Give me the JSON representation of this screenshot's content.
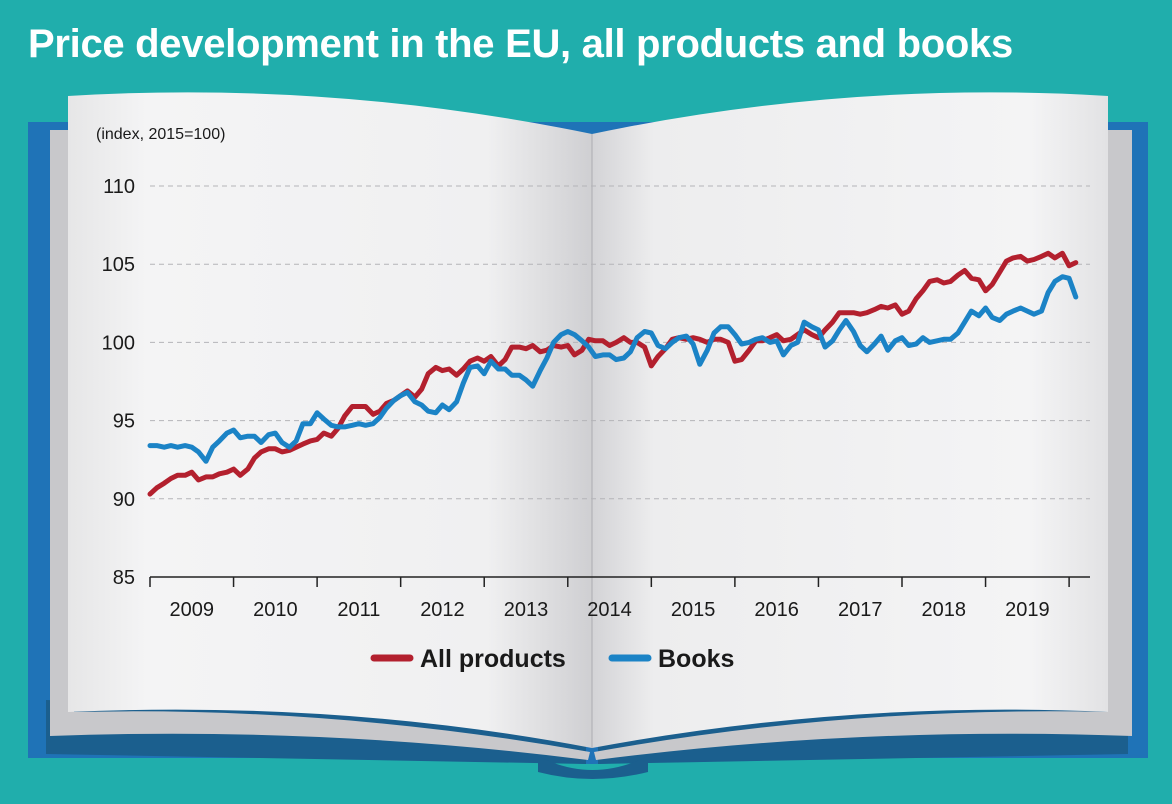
{
  "header": {
    "title": "Price development in the EU, all products and books"
  },
  "colors": {
    "background": "#20aeac",
    "book_cover": "#1f73b7",
    "page": "#efeff0",
    "all_products": "#b3202e",
    "books": "#1b83c6"
  },
  "chart_data": {
    "type": "line",
    "title": "Price development in the EU, all products and books",
    "subtitle": "(index, 2015=100)",
    "xlabel": "",
    "ylabel": "",
    "ylim": [
      85,
      110
    ],
    "yticks": [
      85,
      90,
      95,
      100,
      105,
      110
    ],
    "xlim": [
      2009.0,
      2020.25
    ],
    "year_labels": [
      "2009",
      "2010",
      "2011",
      "2012",
      "2013",
      "2014",
      "2015",
      "2016",
      "2017",
      "2018",
      "2019"
    ],
    "grid": "horizontal dashed",
    "legend_position": "bottom",
    "series": [
      {
        "name": "All products",
        "color": "#b3202e",
        "points": [
          [
            2009.0,
            90.3
          ],
          [
            2009.08,
            90.7
          ],
          [
            2009.17,
            91.0
          ],
          [
            2009.25,
            91.3
          ],
          [
            2009.33,
            91.5
          ],
          [
            2009.42,
            91.5
          ],
          [
            2009.5,
            91.7
          ],
          [
            2009.58,
            91.2
          ],
          [
            2009.67,
            91.4
          ],
          [
            2009.75,
            91.4
          ],
          [
            2009.83,
            91.6
          ],
          [
            2009.92,
            91.7
          ],
          [
            2010.0,
            91.9
          ],
          [
            2010.08,
            91.5
          ],
          [
            2010.17,
            91.9
          ],
          [
            2010.25,
            92.6
          ],
          [
            2010.33,
            93.0
          ],
          [
            2010.42,
            93.2
          ],
          [
            2010.5,
            93.2
          ],
          [
            2010.58,
            93.0
          ],
          [
            2010.67,
            93.1
          ],
          [
            2010.75,
            93.3
          ],
          [
            2010.83,
            93.5
          ],
          [
            2010.92,
            93.7
          ],
          [
            2011.0,
            93.8
          ],
          [
            2011.08,
            94.2
          ],
          [
            2011.17,
            94.0
          ],
          [
            2011.25,
            94.5
          ],
          [
            2011.33,
            95.3
          ],
          [
            2011.42,
            95.9
          ],
          [
            2011.5,
            95.9
          ],
          [
            2011.58,
            95.9
          ],
          [
            2011.67,
            95.4
          ],
          [
            2011.75,
            95.6
          ],
          [
            2011.83,
            96.1
          ],
          [
            2011.92,
            96.3
          ],
          [
            2012.0,
            96.6
          ],
          [
            2012.08,
            96.9
          ],
          [
            2012.17,
            96.5
          ],
          [
            2012.25,
            97.0
          ],
          [
            2012.33,
            98.0
          ],
          [
            2012.42,
            98.4
          ],
          [
            2012.5,
            98.2
          ],
          [
            2012.58,
            98.3
          ],
          [
            2012.67,
            97.9
          ],
          [
            2012.75,
            98.3
          ],
          [
            2012.83,
            98.8
          ],
          [
            2012.92,
            99.0
          ],
          [
            2013.0,
            98.8
          ],
          [
            2013.08,
            99.1
          ],
          [
            2013.17,
            98.5
          ],
          [
            2013.25,
            98.9
          ],
          [
            2013.33,
            99.7
          ],
          [
            2013.42,
            99.7
          ],
          [
            2013.5,
            99.6
          ],
          [
            2013.58,
            99.8
          ],
          [
            2013.67,
            99.4
          ],
          [
            2013.75,
            99.5
          ],
          [
            2013.83,
            99.8
          ],
          [
            2013.92,
            99.7
          ],
          [
            2014.0,
            99.8
          ],
          [
            2014.08,
            99.2
          ],
          [
            2014.17,
            99.5
          ],
          [
            2014.25,
            100.2
          ],
          [
            2014.33,
            100.1
          ],
          [
            2014.42,
            100.1
          ],
          [
            2014.5,
            99.8
          ],
          [
            2014.58,
            100.0
          ],
          [
            2014.67,
            100.3
          ],
          [
            2014.75,
            100.0
          ],
          [
            2014.83,
            100.0
          ],
          [
            2014.92,
            99.7
          ],
          [
            2015.0,
            98.5
          ],
          [
            2015.08,
            99.1
          ],
          [
            2015.17,
            99.6
          ],
          [
            2015.25,
            100.2
          ],
          [
            2015.33,
            100.3
          ],
          [
            2015.42,
            100.2
          ],
          [
            2015.5,
            100.3
          ],
          [
            2015.58,
            100.2
          ],
          [
            2015.67,
            100.0
          ],
          [
            2015.75,
            100.2
          ],
          [
            2015.83,
            100.2
          ],
          [
            2015.92,
            100.0
          ],
          [
            2016.0,
            98.8
          ],
          [
            2016.08,
            98.9
          ],
          [
            2016.17,
            99.5
          ],
          [
            2016.25,
            100.1
          ],
          [
            2016.33,
            100.1
          ],
          [
            2016.42,
            100.3
          ],
          [
            2016.5,
            100.5
          ],
          [
            2016.58,
            100.1
          ],
          [
            2016.67,
            100.2
          ],
          [
            2016.75,
            100.5
          ],
          [
            2016.83,
            100.8
          ],
          [
            2016.92,
            100.5
          ],
          [
            2017.0,
            100.3
          ],
          [
            2017.08,
            100.8
          ],
          [
            2017.17,
            101.3
          ],
          [
            2017.25,
            101.9
          ],
          [
            2017.33,
            101.9
          ],
          [
            2017.42,
            101.9
          ],
          [
            2017.5,
            101.8
          ],
          [
            2017.58,
            101.9
          ],
          [
            2017.67,
            102.1
          ],
          [
            2017.75,
            102.3
          ],
          [
            2017.83,
            102.2
          ],
          [
            2017.92,
            102.4
          ],
          [
            2018.0,
            101.8
          ],
          [
            2018.08,
            102.0
          ],
          [
            2018.17,
            102.8
          ],
          [
            2018.25,
            103.3
          ],
          [
            2018.33,
            103.9
          ],
          [
            2018.42,
            104.0
          ],
          [
            2018.5,
            103.8
          ],
          [
            2018.58,
            103.9
          ],
          [
            2018.67,
            104.3
          ],
          [
            2018.75,
            104.6
          ],
          [
            2018.83,
            104.1
          ],
          [
            2018.92,
            104.0
          ],
          [
            2019.0,
            103.3
          ],
          [
            2019.08,
            103.7
          ],
          [
            2019.17,
            104.5
          ],
          [
            2019.25,
            105.2
          ],
          [
            2019.33,
            105.4
          ],
          [
            2019.42,
            105.5
          ],
          [
            2019.5,
            105.2
          ],
          [
            2019.58,
            105.3
          ],
          [
            2019.67,
            105.5
          ],
          [
            2019.75,
            105.7
          ],
          [
            2019.83,
            105.4
          ],
          [
            2019.92,
            105.7
          ],
          [
            2020.0,
            104.9
          ],
          [
            2020.08,
            105.1
          ]
        ]
      },
      {
        "name": "Books",
        "color": "#1b83c6",
        "points": [
          [
            2009.0,
            93.4
          ],
          [
            2009.08,
            93.4
          ],
          [
            2009.17,
            93.3
          ],
          [
            2009.25,
            93.4
          ],
          [
            2009.33,
            93.3
          ],
          [
            2009.42,
            93.4
          ],
          [
            2009.5,
            93.3
          ],
          [
            2009.58,
            93.0
          ],
          [
            2009.67,
            92.4
          ],
          [
            2009.75,
            93.3
          ],
          [
            2009.83,
            93.7
          ],
          [
            2009.92,
            94.2
          ],
          [
            2010.0,
            94.4
          ],
          [
            2010.08,
            93.9
          ],
          [
            2010.17,
            94.0
          ],
          [
            2010.25,
            94.0
          ],
          [
            2010.33,
            93.6
          ],
          [
            2010.42,
            94.1
          ],
          [
            2010.5,
            94.2
          ],
          [
            2010.58,
            93.6
          ],
          [
            2010.67,
            93.3
          ],
          [
            2010.75,
            93.7
          ],
          [
            2010.83,
            94.8
          ],
          [
            2010.92,
            94.8
          ],
          [
            2011.0,
            95.5
          ],
          [
            2011.08,
            95.1
          ],
          [
            2011.17,
            94.7
          ],
          [
            2011.25,
            94.6
          ],
          [
            2011.33,
            94.6
          ],
          [
            2011.42,
            94.7
          ],
          [
            2011.5,
            94.8
          ],
          [
            2011.58,
            94.7
          ],
          [
            2011.67,
            94.8
          ],
          [
            2011.75,
            95.2
          ],
          [
            2011.83,
            95.8
          ],
          [
            2011.92,
            96.3
          ],
          [
            2012.0,
            96.6
          ],
          [
            2012.08,
            96.8
          ],
          [
            2012.17,
            96.2
          ],
          [
            2012.25,
            96.0
          ],
          [
            2012.33,
            95.6
          ],
          [
            2012.42,
            95.5
          ],
          [
            2012.5,
            96.0
          ],
          [
            2012.58,
            95.7
          ],
          [
            2012.67,
            96.2
          ],
          [
            2012.75,
            97.4
          ],
          [
            2012.83,
            98.4
          ],
          [
            2012.92,
            98.5
          ],
          [
            2013.0,
            98.0
          ],
          [
            2013.08,
            98.8
          ],
          [
            2013.17,
            98.3
          ],
          [
            2013.25,
            98.3
          ],
          [
            2013.33,
            97.9
          ],
          [
            2013.42,
            97.9
          ],
          [
            2013.5,
            97.6
          ],
          [
            2013.58,
            97.2
          ],
          [
            2013.67,
            98.2
          ],
          [
            2013.75,
            99.0
          ],
          [
            2013.83,
            100.0
          ],
          [
            2013.92,
            100.5
          ],
          [
            2014.0,
            100.7
          ],
          [
            2014.08,
            100.5
          ],
          [
            2014.17,
            100.1
          ],
          [
            2014.25,
            99.7
          ],
          [
            2014.33,
            99.1
          ],
          [
            2014.42,
            99.2
          ],
          [
            2014.5,
            99.2
          ],
          [
            2014.58,
            98.9
          ],
          [
            2014.67,
            99.0
          ],
          [
            2014.75,
            99.4
          ],
          [
            2014.83,
            100.3
          ],
          [
            2014.92,
            100.7
          ],
          [
            2015.0,
            100.6
          ],
          [
            2015.08,
            99.8
          ],
          [
            2015.17,
            99.6
          ],
          [
            2015.25,
            100.0
          ],
          [
            2015.33,
            100.3
          ],
          [
            2015.42,
            100.4
          ],
          [
            2015.5,
            99.9
          ],
          [
            2015.58,
            98.6
          ],
          [
            2015.67,
            99.5
          ],
          [
            2015.75,
            100.6
          ],
          [
            2015.83,
            101.0
          ],
          [
            2015.92,
            101.0
          ],
          [
            2016.0,
            100.5
          ],
          [
            2016.08,
            99.9
          ],
          [
            2016.17,
            100.0
          ],
          [
            2016.25,
            100.2
          ],
          [
            2016.33,
            100.3
          ],
          [
            2016.42,
            100.0
          ],
          [
            2016.5,
            100.1
          ],
          [
            2016.58,
            99.2
          ],
          [
            2016.67,
            99.8
          ],
          [
            2016.75,
            100.0
          ],
          [
            2016.83,
            101.3
          ],
          [
            2016.92,
            101.0
          ],
          [
            2017.0,
            100.8
          ],
          [
            2017.08,
            99.7
          ],
          [
            2017.17,
            100.1
          ],
          [
            2017.25,
            100.8
          ],
          [
            2017.33,
            101.4
          ],
          [
            2017.42,
            100.7
          ],
          [
            2017.5,
            99.8
          ],
          [
            2017.58,
            99.4
          ],
          [
            2017.67,
            99.9
          ],
          [
            2017.75,
            100.4
          ],
          [
            2017.83,
            99.5
          ],
          [
            2017.92,
            100.1
          ],
          [
            2018.0,
            100.3
          ],
          [
            2018.08,
            99.8
          ],
          [
            2018.17,
            99.9
          ],
          [
            2018.25,
            100.3
          ],
          [
            2018.33,
            100.0
          ],
          [
            2018.42,
            100.1
          ],
          [
            2018.5,
            100.2
          ],
          [
            2018.58,
            100.2
          ],
          [
            2018.67,
            100.6
          ],
          [
            2018.75,
            101.3
          ],
          [
            2018.83,
            102.0
          ],
          [
            2018.92,
            101.7
          ],
          [
            2019.0,
            102.2
          ],
          [
            2019.08,
            101.6
          ],
          [
            2019.17,
            101.4
          ],
          [
            2019.25,
            101.8
          ],
          [
            2019.33,
            102.0
          ],
          [
            2019.42,
            102.2
          ],
          [
            2019.5,
            102.0
          ],
          [
            2019.58,
            101.8
          ],
          [
            2019.67,
            102.0
          ],
          [
            2019.75,
            103.2
          ],
          [
            2019.83,
            103.9
          ],
          [
            2019.92,
            104.2
          ],
          [
            2020.0,
            104.1
          ],
          [
            2020.08,
            102.9
          ]
        ]
      }
    ]
  }
}
